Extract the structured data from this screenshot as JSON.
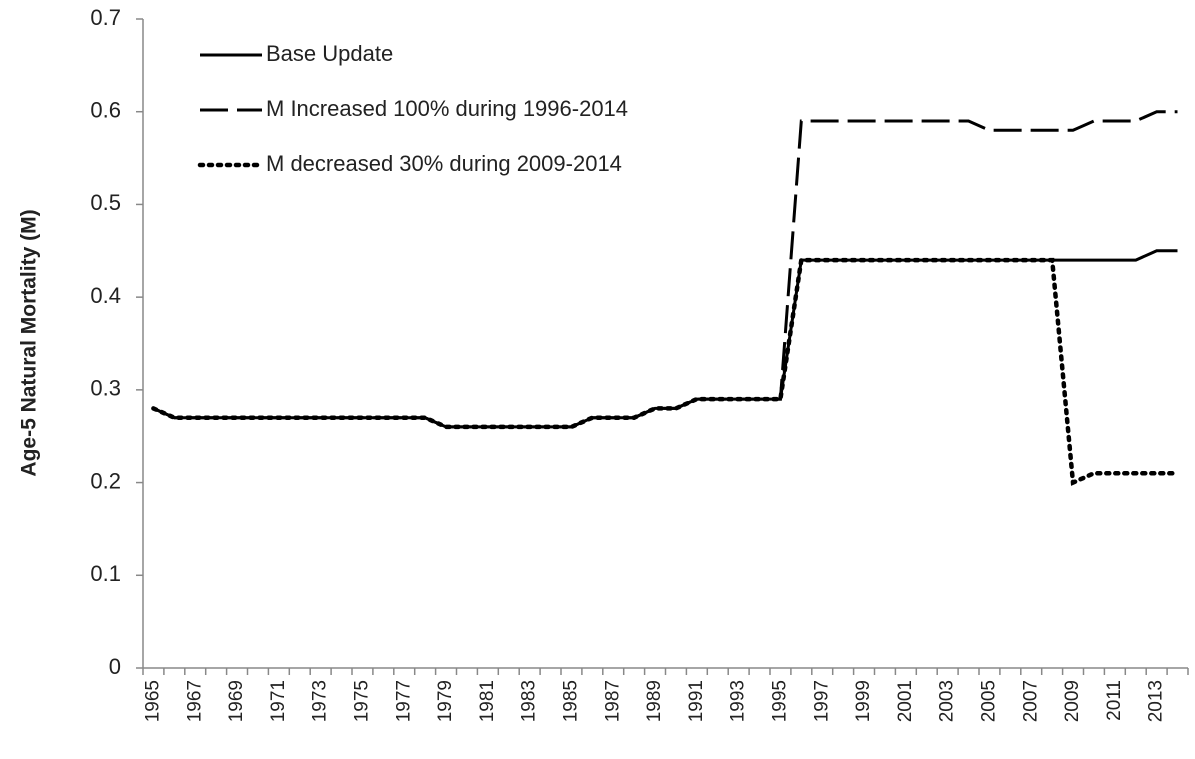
{
  "chart_data": {
    "type": "line",
    "ylabel": "Age-5 Natural Mortality (M)",
    "categories": [
      "1965",
      null,
      "1967",
      null,
      "1969",
      null,
      "1971",
      null,
      "1973",
      null,
      "1975",
      null,
      "1977",
      null,
      "1979",
      null,
      "1981",
      null,
      "1983",
      null,
      "1985",
      null,
      "1987",
      null,
      "1989",
      null,
      "1991",
      null,
      "1993",
      null,
      "1995",
      null,
      "1997",
      null,
      "1999",
      null,
      "2001",
      null,
      "2003",
      null,
      "2005",
      null,
      "2007",
      null,
      "2009",
      null,
      "2011",
      null,
      "2013",
      null
    ],
    "series": [
      {
        "name": "Base Update",
        "color": "#000000",
        "dash": "solid",
        "values": [
          0.28,
          0.27,
          0.27,
          0.27,
          0.27,
          0.27,
          0.27,
          0.27,
          0.27,
          0.27,
          0.27,
          0.27,
          0.27,
          0.27,
          0.26,
          0.26,
          0.26,
          0.26,
          0.26,
          0.26,
          0.26,
          0.27,
          0.27,
          0.27,
          0.28,
          0.28,
          0.29,
          0.29,
          0.29,
          0.29,
          0.29,
          0.44,
          0.44,
          0.44,
          0.44,
          0.44,
          0.44,
          0.44,
          0.44,
          0.44,
          0.44,
          0.44,
          0.44,
          0.44,
          0.44,
          0.44,
          0.44,
          0.44,
          0.45,
          0.45
        ]
      },
      {
        "name": "M Increased 100% during 1996-2014",
        "color": "#000000",
        "dash": "dashed",
        "values": [
          0.28,
          0.27,
          0.27,
          0.27,
          0.27,
          0.27,
          0.27,
          0.27,
          0.27,
          0.27,
          0.27,
          0.27,
          0.27,
          0.27,
          0.26,
          0.26,
          0.26,
          0.26,
          0.26,
          0.26,
          0.26,
          0.27,
          0.27,
          0.27,
          0.28,
          0.28,
          0.29,
          0.29,
          0.29,
          0.29,
          0.29,
          0.59,
          0.59,
          0.59,
          0.59,
          0.59,
          0.59,
          0.59,
          0.59,
          0.59,
          0.58,
          0.58,
          0.58,
          0.58,
          0.58,
          0.59,
          0.59,
          0.59,
          0.6,
          0.6
        ]
      },
      {
        "name": "M decreased 30% during 2009-2014",
        "color": "#000000",
        "dash": "dotted",
        "values": [
          0.28,
          0.27,
          0.27,
          0.27,
          0.27,
          0.27,
          0.27,
          0.27,
          0.27,
          0.27,
          0.27,
          0.27,
          0.27,
          0.27,
          0.26,
          0.26,
          0.26,
          0.26,
          0.26,
          0.26,
          0.26,
          0.27,
          0.27,
          0.27,
          0.28,
          0.28,
          0.29,
          0.29,
          0.29,
          0.29,
          0.29,
          0.44,
          0.44,
          0.44,
          0.44,
          0.44,
          0.44,
          0.44,
          0.44,
          0.44,
          0.44,
          0.44,
          0.44,
          0.44,
          0.2,
          0.21,
          0.21,
          0.21,
          0.21,
          0.21
        ]
      }
    ],
    "ylim": [
      0,
      0.7
    ],
    "yticks": [
      0,
      0.1,
      0.2,
      0.3,
      0.4,
      0.5,
      0.6,
      0.7
    ],
    "grid": false,
    "legend": "top-left"
  }
}
